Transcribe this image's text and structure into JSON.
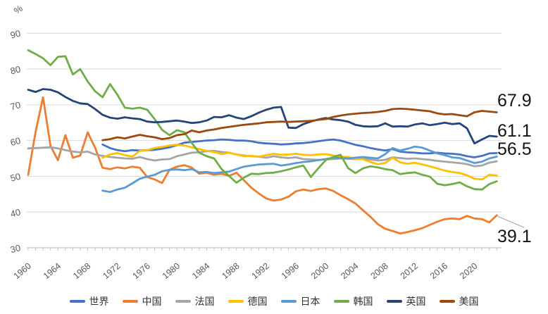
{
  "chart_data": {
    "type": "line",
    "title": "",
    "ylabel": "%",
    "ylim": [
      30,
      90
    ],
    "ytick_step": 10,
    "ytick_labels": [
      "30",
      "40",
      "50",
      "60",
      "70",
      "80",
      "90"
    ],
    "x_start": 1960,
    "x_end": 2023,
    "xtick_label_years": [
      1960,
      1964,
      1968,
      1972,
      1976,
      1980,
      1984,
      1988,
      1992,
      1996,
      2000,
      2004,
      2008,
      2012,
      2016,
      2020
    ],
    "grid": "horizontal-only",
    "legend_position": "bottom",
    "colors": {
      "grid": "#d9d9d9",
      "axis": "#bfbfbf",
      "tick_text": "#595959",
      "end_label_text": "#141414",
      "leader_line": "#a6a6a6"
    },
    "series": [
      {
        "id": "world",
        "name": "世界",
        "color": "#4472C4",
        "start_year": 1970,
        "values": [
          58.9,
          57.9,
          57.3,
          57.0,
          57.3,
          57.2,
          57.3,
          57.4,
          57.7,
          58.1,
          58.7,
          59.4,
          59.6,
          59.8,
          60.0,
          60.1,
          60.3,
          60.2,
          60.0,
          60.0,
          59.8,
          59.4,
          59.2,
          59.1,
          58.9,
          59.0,
          59.2,
          59.3,
          59.5,
          59.8,
          60.1,
          60.3,
          60.0,
          59.4,
          58.8,
          58.4,
          57.9,
          57.5,
          57.2,
          57.6,
          56.9,
          56.7,
          56.6,
          56.4,
          56.4,
          56.6,
          56.4,
          56.3,
          56.1,
          55.6,
          55.3,
          55.7,
          56.4,
          56.5
        ]
      },
      {
        "id": "china",
        "name": "中国",
        "color": "#ED7D31",
        "start_year": 1960,
        "values": [
          50.4,
          62.5,
          72.1,
          58.5,
          54.5,
          61.5,
          55.2,
          55.8,
          62.3,
          58.0,
          52.4,
          52.0,
          52.5,
          52.2,
          52.7,
          52.4,
          49.8,
          49.1,
          48.1,
          51.8,
          52.7,
          53.1,
          52.4,
          50.7,
          51.0,
          50.4,
          50.7,
          50.1,
          51.0,
          48.9,
          46.8,
          45.2,
          43.8,
          43.2,
          43.5,
          44.3,
          45.8,
          46.3,
          45.9,
          46.4,
          46.6,
          45.9,
          44.7,
          43.6,
          42.4,
          40.5,
          38.7,
          36.6,
          35.3,
          34.7,
          34.0,
          34.4,
          34.9,
          35.5,
          36.4,
          37.3,
          38.0,
          38.2,
          38.0,
          38.9,
          38.2,
          38.0,
          37.1,
          39.1
        ]
      },
      {
        "id": "france",
        "name": "法国",
        "color": "#A5A5A5",
        "start_year": 1960,
        "values": [
          57.8,
          57.9,
          58.0,
          58.1,
          57.8,
          57.3,
          56.9,
          56.7,
          56.9,
          56.1,
          55.7,
          55.4,
          55.2,
          55.0,
          54.9,
          55.4,
          54.8,
          54.4,
          54.7,
          54.8,
          55.6,
          56.1,
          56.6,
          56.7,
          57.0,
          57.1,
          56.8,
          56.6,
          56.1,
          55.8,
          55.6,
          55.5,
          55.2,
          55.6,
          55.3,
          55.1,
          55.3,
          54.8,
          54.7,
          54.6,
          54.7,
          54.8,
          55.0,
          54.9,
          54.8,
          54.9,
          54.7,
          54.4,
          54.6,
          55.3,
          55.1,
          54.9,
          55.0,
          54.8,
          54.6,
          54.3,
          54.1,
          53.9,
          53.7,
          53.4,
          52.8,
          53.0,
          53.8,
          54.2
        ]
      },
      {
        "id": "germany",
        "name": "德国",
        "color": "#FFC000",
        "start_year": 1970,
        "values": [
          55.2,
          56.1,
          56.5,
          55.9,
          55.5,
          57.1,
          57.3,
          57.9,
          58.2,
          58.6,
          58.8,
          58.6,
          58.1,
          57.6,
          57.1,
          56.8,
          56.2,
          56.6,
          56.1,
          55.6,
          55.7,
          55.5,
          55.9,
          56.3,
          56.0,
          56.1,
          56.3,
          56.0,
          55.9,
          56.1,
          56.2,
          55.8,
          55.5,
          55.4,
          54.9,
          54.8,
          54.0,
          53.4,
          53.7,
          55.2,
          53.9,
          53.5,
          53.8,
          53.3,
          52.8,
          52.2,
          51.6,
          51.2,
          50.9,
          50.3,
          49.3,
          49.1,
          50.4,
          50.2
        ]
      },
      {
        "id": "japan",
        "name": "日本",
        "color": "#5B9BD5",
        "start_year": 1970,
        "values": [
          46.0,
          45.6,
          46.3,
          46.8,
          48.0,
          49.3,
          49.9,
          50.4,
          51.4,
          51.8,
          51.9,
          51.7,
          52.0,
          51.1,
          51.2,
          50.9,
          51.1,
          51.3,
          52.0,
          52.7,
          53.0,
          53.3,
          53.4,
          53.5,
          53.0,
          53.3,
          53.7,
          54.0,
          54.2,
          54.5,
          54.8,
          55.2,
          55.1,
          55.0,
          55.2,
          55.4,
          55.2,
          55.0,
          56.2,
          57.9,
          57.2,
          57.7,
          58.3,
          58.0,
          57.2,
          56.4,
          55.9,
          55.3,
          55.1,
          54.4,
          53.7,
          54.1,
          55.0,
          55.5
        ]
      },
      {
        "id": "korea",
        "name": "韩国",
        "color": "#70AD47",
        "start_year": 1960,
        "values": [
          85.3,
          84.2,
          83.0,
          81.1,
          83.4,
          83.6,
          78.5,
          80.0,
          76.5,
          73.8,
          72.1,
          75.8,
          72.8,
          69.2,
          68.9,
          69.2,
          68.6,
          66.0,
          63.0,
          61.5,
          62.9,
          62.3,
          59.3,
          56.6,
          55.6,
          55.0,
          52.0,
          50.1,
          48.2,
          49.6,
          50.7,
          50.6,
          50.9,
          51.0,
          51.4,
          51.9,
          52.5,
          53.0,
          49.8,
          52.2,
          54.5,
          55.4,
          56.0,
          52.3,
          50.9,
          52.2,
          52.8,
          52.5,
          52.0,
          51.7,
          50.6,
          50.9,
          51.1,
          50.4,
          49.9,
          47.9,
          47.5,
          47.8,
          48.3,
          47.2,
          46.4,
          46.3,
          47.8,
          48.6
        ]
      },
      {
        "id": "uk",
        "name": "英国",
        "color": "#264478",
        "start_year": 1960,
        "values": [
          74.2,
          73.6,
          74.4,
          74.2,
          73.5,
          72.2,
          71.1,
          70.4,
          70.2,
          68.8,
          67.2,
          66.4,
          66.1,
          66.5,
          66.2,
          66.0,
          65.3,
          65.1,
          65.2,
          65.4,
          65.6,
          65.3,
          64.9,
          65.1,
          65.6,
          66.6,
          66.5,
          67.1,
          66.4,
          66.0,
          66.8,
          67.8,
          68.6,
          69.2,
          69.4,
          63.6,
          63.5,
          64.6,
          65.3,
          65.9,
          66.3,
          65.9,
          65.7,
          65.3,
          64.4,
          64.0,
          63.9,
          64.0,
          64.8,
          63.9,
          64.0,
          63.9,
          64.5,
          64.8,
          64.3,
          64.6,
          65.0,
          64.6,
          64.8,
          63.4,
          59.2,
          60.3,
          61.3,
          61.1
        ]
      },
      {
        "id": "usa",
        "name": "美国",
        "color": "#9E480E",
        "start_year": 1970,
        "values": [
          60.1,
          60.4,
          60.9,
          60.6,
          61.1,
          61.6,
          61.2,
          60.9,
          60.4,
          60.7,
          61.5,
          61.8,
          62.8,
          62.3,
          62.8,
          63.1,
          63.5,
          63.8,
          64.1,
          64.4,
          64.6,
          64.8,
          65.1,
          65.2,
          65.3,
          65.2,
          65.3,
          65.4,
          65.5,
          65.8,
          66.0,
          66.6,
          67.0,
          67.3,
          67.5,
          67.7,
          67.8,
          68.0,
          68.3,
          68.8,
          68.9,
          68.8,
          68.6,
          68.4,
          68.2,
          67.6,
          67.3,
          67.4,
          67.1,
          66.8,
          67.9,
          68.3,
          68.1,
          67.9
        ]
      }
    ],
    "end_labels": [
      {
        "text": "67.9",
        "series": "美国"
      },
      {
        "text": "61.1",
        "series": "英国"
      },
      {
        "text": "56.5",
        "series": "世界"
      },
      {
        "text": "39.1",
        "series": "中国",
        "leader_line": true
      }
    ],
    "legend": [
      {
        "id": "world",
        "label": "世界",
        "color": "#4472C4"
      },
      {
        "id": "china",
        "label": "中国",
        "color": "#ED7D31"
      },
      {
        "id": "france",
        "label": "法国",
        "color": "#A5A5A5"
      },
      {
        "id": "germany",
        "label": "德国",
        "color": "#FFC000"
      },
      {
        "id": "japan",
        "label": "日本",
        "color": "#5B9BD5"
      },
      {
        "id": "korea",
        "label": "韩国",
        "color": "#70AD47"
      },
      {
        "id": "uk",
        "label": "英国",
        "color": "#264478"
      },
      {
        "id": "usa",
        "label": "美国",
        "color": "#9E480E"
      }
    ]
  }
}
